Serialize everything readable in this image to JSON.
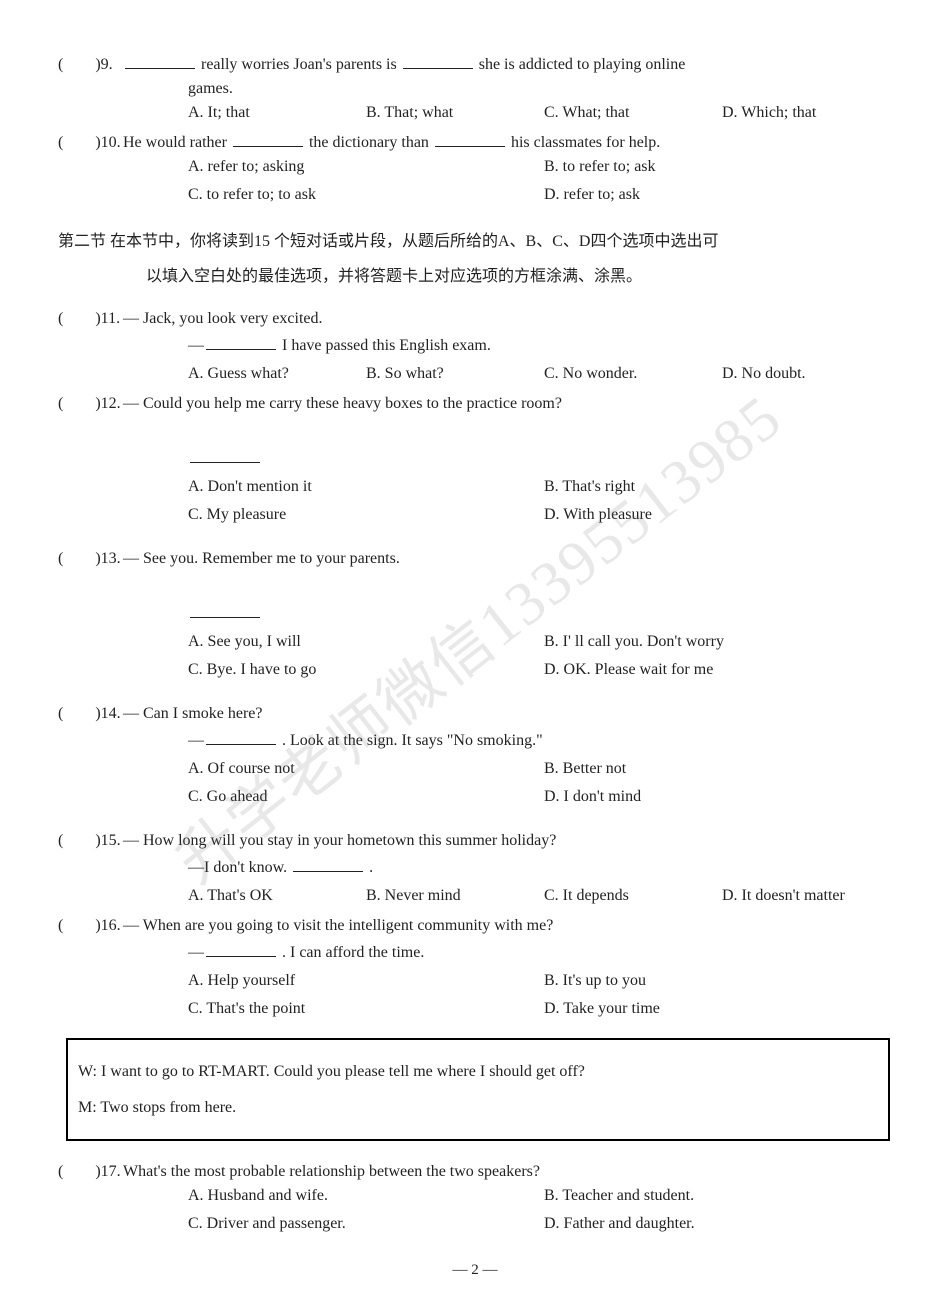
{
  "watermark": "升学老师微信13395513985",
  "page_number": "— 2 —",
  "q9": {
    "paren": "(　　)9.",
    "stem_p1": "really worries Joan's parents is",
    "stem_p2": "she is addicted to playing online",
    "cont": "games.",
    "optA": "A. It; that",
    "optB": "B. That; what",
    "optC": "C. What; that",
    "optD": "D. Which; that"
  },
  "q10": {
    "paren": "(　　)10.",
    "stem_p1": "He would rather",
    "stem_p2": "the dictionary than",
    "stem_p3": "his classmates for help.",
    "optA": "A. refer to; asking",
    "optB": "B. to refer to; ask",
    "optC": "C. to refer to; to ask",
    "optD": "D. refer to; ask"
  },
  "section2": {
    "line1": "第二节 在本节中，你将读到15 个短对话或片段，从题后所给的A、B、C、D四个选项中选出可",
    "line2": "以填入空白处的最佳选项，并将答题卡上对应选项的方框涂满、涂黑。"
  },
  "q11": {
    "paren": "(　　)11.",
    "stem": "— Jack, you look very excited.",
    "reply_pre": "—",
    "reply_post": "I have passed this English exam.",
    "optA": "A. Guess what?",
    "optB": "B. So what?",
    "optC": "C. No wonder.",
    "optD": "D. No doubt."
  },
  "q12": {
    "paren": "(　　)12.",
    "stem": "— Could you help me carry these heavy boxes to the practice room?",
    "optA": "A. Don't mention it",
    "optB": "B. That's right",
    "optC": "C. My pleasure",
    "optD": "D. With pleasure"
  },
  "q13": {
    "paren": "(　　)13.",
    "stem": "— See you. Remember me to your parents.",
    "optA": "A. See you, I will",
    "optB": "B. I' ll call you. Don't worry",
    "optC": "C. Bye. I have to go",
    "optD": "D. OK. Please wait for me"
  },
  "q14": {
    "paren": "(　　)14.",
    "stem": "— Can I smoke here?",
    "reply_pre": "—",
    "reply_post": ". Look at the sign. It says \"No smoking.\"",
    "optA": "A. Of course not",
    "optB": "B. Better not",
    "optC": "C. Go ahead",
    "optD": "D. I don't mind"
  },
  "q15": {
    "paren": "(　　)15.",
    "stem": "— How long will you stay in your hometown this summer holiday?",
    "reply_pre": "—I don't know.",
    "reply_post": ".",
    "optA": "A. That's OK",
    "optB": "B. Never mind",
    "optC": "C. It depends",
    "optD": "D. It doesn't matter"
  },
  "q16": {
    "paren": "(　　)16.",
    "stem": "— When are you going to visit the intelligent community with me?",
    "reply_pre": "—",
    "reply_post": ". I can afford the time.",
    "optA": "A. Help yourself",
    "optB": "B. It's up to you",
    "optC": "C. That's the point",
    "optD": "D. Take your time"
  },
  "dialogue": {
    "w": "W: I want to go to RT-MART. Could you please tell me where I should get off?",
    "m": "M: Two stops from here."
  },
  "q17": {
    "paren": "(　　)17.",
    "stem": "What's the most probable relationship between the two speakers?",
    "optA": "A. Husband and wife.",
    "optB": "B. Teacher and student.",
    "optC": "C. Driver and passenger.",
    "optD": "D. Father and daughter."
  }
}
